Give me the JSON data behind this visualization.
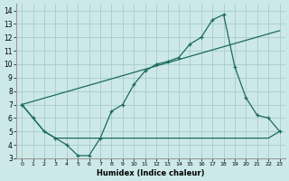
{
  "xlabel": "Humidex (Indice chaleur)",
  "bg_color": "#cce8e8",
  "grid_color": "#aacccc",
  "line_color": "#1a6b5a",
  "xlim": [
    -0.5,
    23.5
  ],
  "ylim": [
    3,
    14.5
  ],
  "xticks": [
    0,
    1,
    2,
    3,
    4,
    5,
    6,
    7,
    8,
    9,
    10,
    11,
    12,
    13,
    14,
    15,
    16,
    17,
    18,
    19,
    20,
    21,
    22,
    23
  ],
  "yticks": [
    3,
    4,
    5,
    6,
    7,
    8,
    9,
    10,
    11,
    12,
    13,
    14
  ],
  "line1_x": [
    0,
    1,
    2,
    3,
    4,
    5,
    6,
    7,
    8,
    9,
    10,
    11,
    12,
    13,
    14,
    15,
    16,
    17,
    18,
    19,
    20,
    21,
    22,
    23
  ],
  "line1_y": [
    7.0,
    6.0,
    5.0,
    4.5,
    4.0,
    3.2,
    3.2,
    4.5,
    6.5,
    7.0,
    8.5,
    9.5,
    10.0,
    10.2,
    10.5,
    11.5,
    12.0,
    13.3,
    13.7,
    9.8,
    7.5,
    6.2,
    6.0,
    5.0
  ],
  "line2_x": [
    0,
    23
  ],
  "line2_y": [
    7.0,
    12.5
  ],
  "line3_x": [
    0,
    1,
    2,
    3,
    4,
    5,
    6,
    7,
    8,
    9,
    10,
    11,
    12,
    13,
    14,
    15,
    16,
    17,
    18,
    19,
    20,
    21,
    22,
    23
  ],
  "line3_y": [
    7.0,
    6.0,
    5.0,
    4.5,
    4.5,
    4.5,
    4.5,
    4.5,
    4.5,
    4.5,
    4.5,
    4.5,
    4.5,
    4.5,
    4.5,
    4.5,
    4.5,
    4.5,
    4.5,
    4.5,
    4.5,
    4.5,
    4.5,
    5.0
  ]
}
